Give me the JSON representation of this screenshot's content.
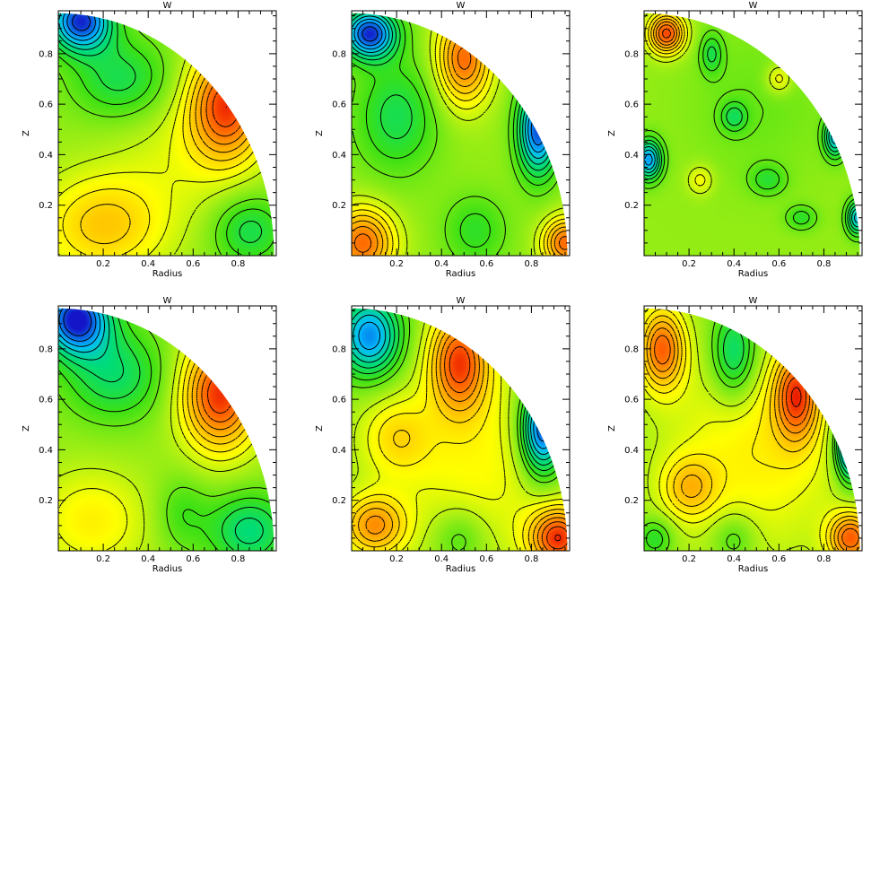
{
  "figure": {
    "panel_title": "W",
    "xlabel": "Radius",
    "ylabel": "Z"
  },
  "chart_data": [
    {
      "type": "heatmap",
      "title": "W",
      "xlabel": "Radius",
      "ylabel": "Z",
      "xlim": [
        0,
        0.97
      ],
      "ylim": [
        0,
        0.97
      ],
      "xticks": [
        0.2,
        0.4,
        0.6,
        0.8
      ],
      "yticks": [
        0.2,
        0.4,
        0.6,
        0.8
      ],
      "domain": "quarter-disk",
      "blobs": [
        {
          "x": 0.1,
          "y": 0.93,
          "sx": 0.14,
          "sy": 0.12,
          "a": -0.95
        },
        {
          "x": 0.28,
          "y": 0.7,
          "sx": 0.22,
          "sy": 0.16,
          "a": -0.35
        },
        {
          "x": 0.75,
          "y": 0.6,
          "sx": 0.17,
          "sy": 0.22,
          "a": 0.85
        },
        {
          "x": 0.2,
          "y": 0.12,
          "sx": 0.28,
          "sy": 0.2,
          "a": 0.45
        },
        {
          "x": 0.85,
          "y": 0.1,
          "sx": 0.16,
          "sy": 0.14,
          "a": -0.35
        },
        {
          "x": 0.55,
          "y": 0.4,
          "sx": 0.3,
          "sy": 0.25,
          "a": 0.15
        }
      ]
    },
    {
      "type": "heatmap",
      "title": "W",
      "xlabel": "Radius",
      "ylabel": "Z",
      "xlim": [
        0,
        0.97
      ],
      "ylim": [
        0,
        0.97
      ],
      "xticks": [
        0.2,
        0.4,
        0.6,
        0.8
      ],
      "yticks": [
        0.2,
        0.4,
        0.6,
        0.8
      ],
      "domain": "quarter-disk",
      "blobs": [
        {
          "x": 0.08,
          "y": 0.88,
          "sx": 0.12,
          "sy": 0.1,
          "a": -0.95
        },
        {
          "x": 0.5,
          "y": 0.78,
          "sx": 0.12,
          "sy": 0.18,
          "a": 0.75
        },
        {
          "x": 0.83,
          "y": 0.5,
          "sx": 0.09,
          "sy": 0.18,
          "a": -0.9
        },
        {
          "x": 0.2,
          "y": 0.55,
          "sx": 0.18,
          "sy": 0.22,
          "a": -0.35
        },
        {
          "x": 0.55,
          "y": 0.1,
          "sx": 0.14,
          "sy": 0.14,
          "a": -0.25
        },
        {
          "x": 0.05,
          "y": 0.05,
          "sx": 0.14,
          "sy": 0.14,
          "a": 0.75
        },
        {
          "x": 0.95,
          "y": 0.05,
          "sx": 0.1,
          "sy": 0.1,
          "a": 0.75
        }
      ]
    },
    {
      "type": "heatmap",
      "title": "W",
      "xlabel": "Radius",
      "ylabel": "Z",
      "xlim": [
        0,
        0.97
      ],
      "ylim": [
        0,
        0.97
      ],
      "xticks": [
        0.2,
        0.4,
        0.6,
        0.8
      ],
      "yticks": [
        0.2,
        0.4,
        0.6,
        0.8
      ],
      "domain": "quarter-disk",
      "blobs": [
        {
          "x": 0.1,
          "y": 0.88,
          "sx": 0.08,
          "sy": 0.08,
          "a": 0.85
        },
        {
          "x": 0.02,
          "y": 0.38,
          "sx": 0.06,
          "sy": 0.08,
          "a": -0.75
        },
        {
          "x": 0.85,
          "y": 0.47,
          "sx": 0.05,
          "sy": 0.08,
          "a": -0.65
        },
        {
          "x": 0.95,
          "y": 0.15,
          "sx": 0.05,
          "sy": 0.07,
          "a": -0.65
        },
        {
          "x": 0.4,
          "y": 0.55,
          "sx": 0.06,
          "sy": 0.06,
          "a": -0.3
        },
        {
          "x": 0.6,
          "y": 0.7,
          "sx": 0.06,
          "sy": 0.06,
          "a": 0.3
        },
        {
          "x": 0.3,
          "y": 0.8,
          "sx": 0.05,
          "sy": 0.08,
          "a": -0.3
        },
        {
          "x": 0.55,
          "y": 0.3,
          "sx": 0.08,
          "sy": 0.06,
          "a": -0.25
        },
        {
          "x": 0.7,
          "y": 0.15,
          "sx": 0.07,
          "sy": 0.05,
          "a": -0.25
        },
        {
          "x": 0.25,
          "y": 0.3,
          "sx": 0.06,
          "sy": 0.06,
          "a": 0.25
        },
        {
          "x": 0.5,
          "y": 0.6,
          "sx": 0.3,
          "sy": 0.3,
          "a": -0.1
        }
      ]
    },
    {
      "type": "heatmap",
      "title": "W",
      "xlabel": "Radius",
      "ylabel": "Z",
      "xlim": [
        0,
        0.97
      ],
      "ylim": [
        0,
        0.97
      ],
      "xticks": [
        0.2,
        0.4,
        0.6,
        0.8
      ],
      "yticks": [
        0.2,
        0.4,
        0.6,
        0.8
      ],
      "domain": "quarter-disk",
      "blobs": [
        {
          "x": 0.08,
          "y": 0.92,
          "sx": 0.15,
          "sy": 0.14,
          "a": -1.0
        },
        {
          "x": 0.25,
          "y": 0.7,
          "sx": 0.22,
          "sy": 0.18,
          "a": -0.4
        },
        {
          "x": 0.72,
          "y": 0.62,
          "sx": 0.17,
          "sy": 0.22,
          "a": 0.9
        },
        {
          "x": 0.15,
          "y": 0.12,
          "sx": 0.25,
          "sy": 0.2,
          "a": 0.3
        },
        {
          "x": 0.85,
          "y": 0.08,
          "sx": 0.18,
          "sy": 0.15,
          "a": -0.45
        },
        {
          "x": 0.55,
          "y": 0.15,
          "sx": 0.12,
          "sy": 0.15,
          "a": -0.2
        }
      ]
    },
    {
      "type": "heatmap",
      "title": "W",
      "xlabel": "Radius",
      "ylabel": "Z",
      "xlim": [
        0,
        0.97
      ],
      "ylim": [
        0,
        0.97
      ],
      "xticks": [
        0.2,
        0.4,
        0.6,
        0.8
      ],
      "yticks": [
        0.2,
        0.4,
        0.6,
        0.8
      ],
      "domain": "quarter-disk",
      "blobs": [
        {
          "x": 0.08,
          "y": 0.85,
          "sx": 0.14,
          "sy": 0.16,
          "a": -0.8
        },
        {
          "x": 0.48,
          "y": 0.75,
          "sx": 0.13,
          "sy": 0.2,
          "a": 0.8
        },
        {
          "x": 0.85,
          "y": 0.48,
          "sx": 0.1,
          "sy": 0.18,
          "a": -1.0
        },
        {
          "x": 0.2,
          "y": 0.45,
          "sx": 0.15,
          "sy": 0.15,
          "a": 0.3
        },
        {
          "x": 0.1,
          "y": 0.1,
          "sx": 0.14,
          "sy": 0.12,
          "a": 0.6
        },
        {
          "x": 0.48,
          "y": 0.05,
          "sx": 0.12,
          "sy": 0.12,
          "a": -0.25
        },
        {
          "x": 0.92,
          "y": 0.05,
          "sx": 0.13,
          "sy": 0.12,
          "a": 0.85
        },
        {
          "x": 0.55,
          "y": 0.35,
          "sx": 0.4,
          "sy": 0.4,
          "a": 0.25
        }
      ]
    },
    {
      "type": "heatmap",
      "title": "W",
      "xlabel": "Radius",
      "ylabel": "Z",
      "xlim": [
        0,
        0.97
      ],
      "ylim": [
        0,
        0.97
      ],
      "xticks": [
        0.2,
        0.4,
        0.6,
        0.8
      ],
      "yticks": [
        0.2,
        0.4,
        0.6,
        0.8
      ],
      "domain": "quarter-disk",
      "blobs": [
        {
          "x": 0.08,
          "y": 0.8,
          "sx": 0.1,
          "sy": 0.16,
          "a": 0.75
        },
        {
          "x": 0.4,
          "y": 0.78,
          "sx": 0.1,
          "sy": 0.18,
          "a": -0.5
        },
        {
          "x": 0.68,
          "y": 0.62,
          "sx": 0.1,
          "sy": 0.18,
          "a": 0.75
        },
        {
          "x": 0.92,
          "y": 0.42,
          "sx": 0.07,
          "sy": 0.14,
          "a": -1.0
        },
        {
          "x": 0.2,
          "y": 0.25,
          "sx": 0.12,
          "sy": 0.12,
          "a": 0.4
        },
        {
          "x": 0.4,
          "y": 0.05,
          "sx": 0.1,
          "sy": 0.1,
          "a": -0.25
        },
        {
          "x": 0.92,
          "y": 0.05,
          "sx": 0.1,
          "sy": 0.1,
          "a": 0.75
        },
        {
          "x": 0.05,
          "y": 0.05,
          "sx": 0.08,
          "sy": 0.08,
          "a": -0.3
        },
        {
          "x": 0.5,
          "y": 0.4,
          "sx": 0.4,
          "sy": 0.4,
          "a": 0.3
        }
      ]
    }
  ]
}
